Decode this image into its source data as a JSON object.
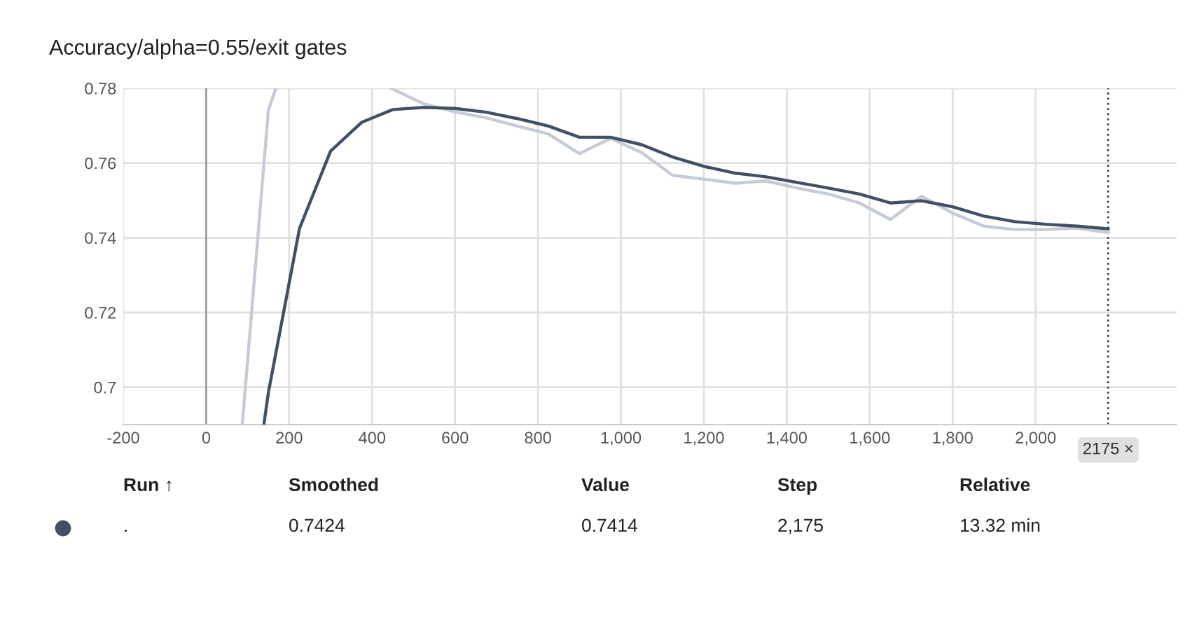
{
  "chart_data": {
    "type": "line",
    "title": "Accuracy/alpha=0.55/exit gates",
    "xlim": [
      -200,
      2340
    ],
    "ylim": [
      0.69,
      0.78
    ],
    "xticks": [
      {
        "value": -200,
        "label": "-200"
      },
      0,
      200,
      400,
      600,
      800,
      {
        "value": 1000,
        "label": "1,000"
      },
      {
        "value": 1200,
        "label": "1,200"
      },
      {
        "value": 1400,
        "label": "1,400"
      },
      {
        "value": 1600,
        "label": "1,600"
      },
      {
        "value": 1800,
        "label": "1,800"
      },
      {
        "value": 2000,
        "label": "2,000"
      }
    ],
    "yticks": [
      0.7,
      0.72,
      0.74,
      0.76,
      0.78
    ],
    "grid": true,
    "marker": "none",
    "line_style": "solid",
    "series": [
      {
        "color": "#c5cbd6",
        "x": [
          87,
          150,
          168,
          null,
          445,
          526,
          600,
          675,
          750,
          825,
          900,
          975,
          1050,
          1125,
          1200,
          1275,
          1350,
          1425,
          1500,
          1575,
          1650,
          1725,
          1800,
          1875,
          1950,
          2025,
          2100,
          2175
        ],
        "values": [
          0.69,
          0.7742,
          0.78,
          null,
          0.78,
          0.7758,
          0.7737,
          0.7721,
          0.7699,
          0.7678,
          0.7625,
          0.7666,
          0.7628,
          0.7567,
          0.7557,
          0.7546,
          0.7552,
          0.7533,
          0.7517,
          0.7493,
          0.7449,
          0.7511,
          0.7466,
          0.7431,
          0.7422,
          0.7422,
          0.7426,
          0.7414
        ]
      },
      {
        "color": "#425066",
        "x": [
          139,
          150,
          225,
          300,
          375,
          450,
          525,
          600,
          675,
          750,
          825,
          900,
          975,
          1050,
          1125,
          1200,
          1275,
          1350,
          1425,
          1500,
          1575,
          1650,
          1725,
          1800,
          1875,
          1950,
          2025,
          2100,
          2175
        ],
        "values": [
          0.69,
          0.6986,
          0.7425,
          0.7632,
          0.7709,
          0.7743,
          0.7749,
          0.7746,
          0.7736,
          0.7719,
          0.7699,
          0.7669,
          0.7669,
          0.7649,
          0.7616,
          0.7591,
          0.7573,
          0.7563,
          0.7548,
          0.7533,
          0.7517,
          0.7493,
          0.7499,
          0.7483,
          0.7458,
          0.7443,
          0.7436,
          0.7431,
          0.7424
        ]
      }
    ],
    "ref_lines": [
      {
        "axis": "x",
        "value": 0,
        "label": null,
        "color": "#9e9e9e",
        "line_style": "solid"
      },
      {
        "axis": "x",
        "value": 2175,
        "label": "2175 ×",
        "color": "#424242",
        "line_style": "dotted"
      }
    ],
    "annotations": [
      "Run ↑",
      "Smoothed",
      "Value",
      "Step",
      "Relative",
      ".",
      "0.7424",
      "0.7414",
      "2,175",
      "13.32 min"
    ]
  }
}
